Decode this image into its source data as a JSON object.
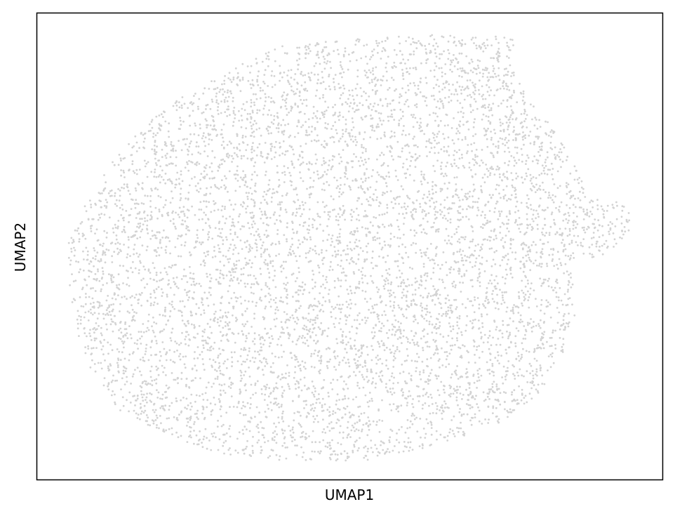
{
  "chart_data": {
    "type": "scatter",
    "xlabel": "UMAP1",
    "ylabel": "UMAP2",
    "xticks": [],
    "yticks": [],
    "grid": false,
    "legend": "none",
    "point_color": "#d3d3d3",
    "axes_color": "#000000",
    "xlim": [
      0,
      100
    ],
    "ylim": [
      0,
      100
    ],
    "point_count": 7000,
    "density_envelope": [
      [
        4.8,
        50
      ],
      [
        5.2,
        37
      ],
      [
        8,
        25
      ],
      [
        13,
        15
      ],
      [
        20,
        10
      ],
      [
        28,
        6
      ],
      [
        36,
        4
      ],
      [
        44,
        4
      ],
      [
        52,
        4
      ],
      [
        60,
        6
      ],
      [
        68,
        9
      ],
      [
        74,
        12
      ],
      [
        80,
        18
      ],
      [
        84,
        26
      ],
      [
        86,
        34
      ],
      [
        86,
        42
      ],
      [
        87,
        48
      ],
      [
        90,
        47
      ],
      [
        94,
        52
      ],
      [
        96,
        55
      ],
      [
        93,
        60
      ],
      [
        88,
        60
      ],
      [
        87,
        65
      ],
      [
        84,
        72
      ],
      [
        81,
        78
      ],
      [
        78,
        83
      ],
      [
        76,
        88
      ],
      [
        77,
        94
      ],
      [
        75,
        95
      ],
      [
        70,
        95
      ],
      [
        62,
        95.5
      ],
      [
        55,
        95
      ],
      [
        47,
        94
      ],
      [
        39,
        93
      ],
      [
        31,
        88
      ],
      [
        24,
        83
      ],
      [
        17,
        76
      ],
      [
        12,
        68
      ],
      [
        8,
        60
      ]
    ]
  }
}
